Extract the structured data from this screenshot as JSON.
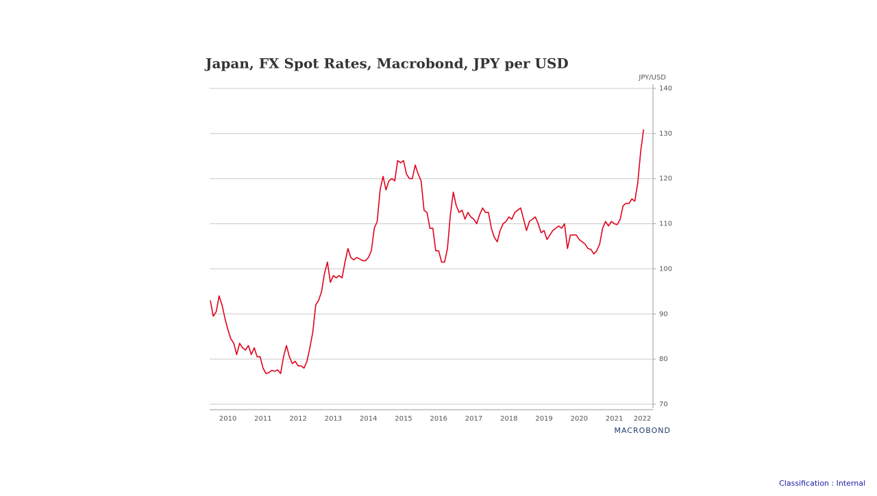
{
  "chart_data": {
    "type": "line",
    "title": "Japan, FX Spot Rates, Macrobond, JPY per USD",
    "y_axis_label": "JPY/USD",
    "source": "MACROBOND",
    "classification": "Classification : Internal",
    "color": "#e0001b",
    "grid": true,
    "x": [
      2010,
      2010.083,
      2010.167,
      2010.25,
      2010.333,
      2010.417,
      2010.5,
      2010.583,
      2010.667,
      2010.75,
      2010.833,
      2010.917,
      2011,
      2011.083,
      2011.167,
      2011.25,
      2011.333,
      2011.417,
      2011.5,
      2011.583,
      2011.667,
      2011.75,
      2011.833,
      2011.917,
      2012,
      2012.083,
      2012.167,
      2012.25,
      2012.333,
      2012.417,
      2012.5,
      2012.583,
      2012.667,
      2012.75,
      2012.833,
      2012.917,
      2013,
      2013.083,
      2013.167,
      2013.25,
      2013.333,
      2013.417,
      2013.5,
      2013.583,
      2013.667,
      2013.75,
      2013.833,
      2013.917,
      2014,
      2014.083,
      2014.167,
      2014.25,
      2014.333,
      2014.417,
      2014.5,
      2014.583,
      2014.667,
      2014.75,
      2014.833,
      2014.917,
      2015,
      2015.083,
      2015.167,
      2015.25,
      2015.333,
      2015.417,
      2015.5,
      2015.583,
      2015.667,
      2015.75,
      2015.833,
      2015.917,
      2016,
      2016.083,
      2016.167,
      2016.25,
      2016.333,
      2016.417,
      2016.5,
      2016.583,
      2016.667,
      2016.75,
      2016.833,
      2016.917,
      2017,
      2017.083,
      2017.167,
      2017.25,
      2017.333,
      2017.417,
      2017.5,
      2017.583,
      2017.667,
      2017.75,
      2017.833,
      2017.917,
      2018,
      2018.083,
      2018.167,
      2018.25,
      2018.333,
      2018.417,
      2018.5,
      2018.583,
      2018.667,
      2018.75,
      2018.833,
      2018.917,
      2019,
      2019.083,
      2019.167,
      2019.25,
      2019.333,
      2019.417,
      2019.5,
      2019.583,
      2019.667,
      2019.75,
      2019.833,
      2019.917,
      2020,
      2020.083,
      2020.167,
      2020.25,
      2020.333,
      2020.417,
      2020.5,
      2020.583,
      2020.667,
      2020.75,
      2020.833,
      2020.917,
      2021,
      2021.083,
      2021.167,
      2021.25,
      2021.333,
      2021.417,
      2021.5,
      2021.583,
      2021.667,
      2021.75,
      2021.833,
      2021.917,
      2022,
      2022.083,
      2022.167,
      2022.25,
      2022.333
    ],
    "values": [
      93,
      89.5,
      90.5,
      94,
      92,
      89,
      86.5,
      84.5,
      83.5,
      81,
      83.5,
      82.5,
      82,
      83,
      81,
      82.5,
      80.5,
      80.5,
      78,
      76.8,
      77,
      77.5,
      77.3,
      77.6,
      76.8,
      80.5,
      83,
      80.5,
      79,
      79.5,
      78.5,
      78.5,
      78,
      79.5,
      82.5,
      86,
      92,
      93,
      95,
      99,
      101.5,
      97,
      98.5,
      98,
      98.5,
      98,
      101.5,
      104.5,
      102.5,
      102,
      102.5,
      102.2,
      101.8,
      101.8,
      102.5,
      104,
      109,
      110.5,
      117.5,
      120.5,
      117.5,
      119.5,
      120,
      119.5,
      124,
      123.5,
      124,
      121,
      120,
      120,
      123,
      121,
      119.5,
      113,
      112.5,
      109,
      109,
      104,
      104,
      101.5,
      101.5,
      104.5,
      112,
      117,
      114,
      112.5,
      113,
      111,
      112.5,
      111.5,
      111,
      110,
      112,
      113.5,
      112.5,
      112.5,
      109,
      107,
      106,
      108.5,
      110,
      110.5,
      111.5,
      111,
      112.5,
      113,
      113.5,
      111,
      108.5,
      110.5,
      111,
      111.5,
      110,
      108,
      108.5,
      106.5,
      107.5,
      108.5,
      109,
      109.5,
      109,
      110,
      104.5,
      107.5,
      107.5,
      107.5,
      106.5,
      106,
      105.5,
      104.5,
      104.3,
      103.3,
      104,
      105.5,
      109,
      110.5,
      109.5,
      110.5,
      110,
      109.8,
      111,
      114,
      114.5,
      114.5,
      115.5,
      115,
      119,
      126,
      130.9
    ],
    "xlim": [
      2010,
      2022.6
    ],
    "xticks": [
      {
        "value": 2010.5,
        "label": "2010"
      },
      {
        "value": 2011.5,
        "label": "2011"
      },
      {
        "value": 2012.5,
        "label": "2012"
      },
      {
        "value": 2013.5,
        "label": "2013"
      },
      {
        "value": 2014.5,
        "label": "2014"
      },
      {
        "value": 2015.5,
        "label": "2015"
      },
      {
        "value": 2016.5,
        "label": "2016"
      },
      {
        "value": 2017.5,
        "label": "2017"
      },
      {
        "value": 2018.5,
        "label": "2018"
      },
      {
        "value": 2019.5,
        "label": "2019"
      },
      {
        "value": 2020.5,
        "label": "2020"
      },
      {
        "value": 2021.5,
        "label": "2021"
      },
      {
        "value": 2022.3,
        "label": "2022"
      }
    ],
    "ylim": [
      70,
      140
    ],
    "yticks": [
      70,
      80,
      90,
      100,
      110,
      120,
      130,
      140
    ]
  }
}
